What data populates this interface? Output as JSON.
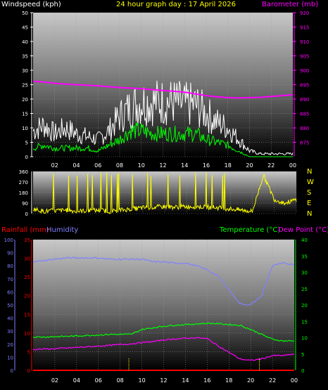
{
  "header": {
    "windspeed_label": "Windspeed (kph)",
    "title": "24 hour graph day : 17 April 2026",
    "barometer_label": "Barometer (mb)"
  },
  "direction_panel": {
    "compass": [
      "N",
      "W",
      "S",
      "E",
      "N"
    ]
  },
  "lower_header": {
    "rainfall_label": "Rainfall (mm)",
    "humidity_label": "Humidity",
    "temperature_label": "Temperature (°C)",
    "dewpoint_label": "Dew Point (°C)"
  },
  "colors": {
    "wind_gust": "#ffffff",
    "wind_avg": "#00ff00",
    "barometer": "#ff00ff",
    "direction": "#ffff00",
    "rainfall": "#ff0000",
    "humidity": "#8080ff",
    "temperature": "#00ff00",
    "dewpoint": "#ff00ff"
  },
  "chart_data": [
    {
      "type": "line",
      "name": "wind-and-pressure",
      "x_tick_labels": [
        "02",
        "04",
        "06",
        "08",
        "10",
        "12",
        "14",
        "16",
        "18",
        "20",
        "22",
        "00"
      ],
      "y_left": {
        "label": "Windspeed (kph)",
        "range": [
          0,
          50
        ],
        "ticks": [
          "0",
          "5",
          "10",
          "15",
          "20",
          "25",
          "30",
          "35",
          "40",
          "45",
          "50"
        ]
      },
      "y_right": {
        "label": "Barometer (mb)",
        "range": [
          870,
          920
        ],
        "ticks": [
          "875",
          "880",
          "885",
          "890",
          "895",
          "900",
          "905",
          "910",
          "915",
          "920"
        ]
      },
      "hours": [
        0,
        1,
        2,
        3,
        4,
        5,
        6,
        7,
        8,
        9,
        10,
        11,
        12,
        13,
        14,
        15,
        16,
        17,
        18,
        19,
        20,
        21,
        22,
        23,
        24
      ],
      "series": [
        {
          "key": "gust",
          "values": [
            9,
            11,
            8,
            10,
            8,
            7,
            6,
            9,
            14,
            17,
            19,
            19,
            19,
            19,
            18,
            18,
            15,
            12,
            10,
            6,
            2,
            1,
            1,
            1,
            1
          ]
        },
        {
          "key": "avg",
          "values": [
            3,
            4,
            3,
            3,
            3,
            3,
            2,
            4,
            6,
            9,
            9,
            8,
            8,
            8,
            8,
            8,
            6,
            5,
            4,
            2,
            0,
            0,
            0,
            0,
            0
          ]
        },
        {
          "key": "pressure",
          "values": [
            896.2,
            895.9,
            895.5,
            895.2,
            895,
            894.8,
            894.6,
            894.3,
            894,
            893.8,
            893.6,
            893.3,
            893,
            892.7,
            892.4,
            891.8,
            891.2,
            890.8,
            890.5,
            890.4,
            890.5,
            890.6,
            890.9,
            891.2,
            891.5
          ]
        }
      ]
    },
    {
      "type": "scatter",
      "name": "wind-direction",
      "y_range": [
        0,
        360
      ],
      "y_ticks": [
        "0",
        "90",
        "180",
        "270",
        "360"
      ],
      "hours": [
        0,
        1,
        2,
        3,
        4,
        5,
        6,
        7,
        8,
        9,
        10,
        11,
        12,
        13,
        14,
        15,
        16,
        17,
        18,
        19,
        20,
        21,
        22,
        23,
        24
      ],
      "values": [
        40,
        20,
        25,
        30,
        20,
        25,
        30,
        20,
        30,
        40,
        50,
        55,
        60,
        55,
        60,
        60,
        55,
        50,
        40,
        30,
        20,
        330,
        120,
        90,
        120
      ]
    },
    {
      "type": "line",
      "name": "rain-humidity-temperature",
      "x_tick_labels": [
        "02",
        "04",
        "06",
        "08",
        "10",
        "12",
        "14",
        "16",
        "18",
        "20",
        "22",
        "00"
      ],
      "y_left": {
        "label": "Rainfall (mm)",
        "range": [
          0,
          35
        ],
        "ticks": [
          "0",
          "5",
          "10",
          "15",
          "20",
          "25",
          "30",
          "35"
        ]
      },
      "y_humidity": {
        "label": "Humidity",
        "range": [
          0,
          100
        ],
        "ticks": [
          "0",
          "10",
          "20",
          "30",
          "40",
          "50",
          "60",
          "70",
          "80",
          "90",
          "100"
        ]
      },
      "y_right": {
        "label": "Temperature (°C)",
        "range": [
          0,
          40
        ],
        "ticks": [
          "0",
          "5",
          "10",
          "15",
          "20",
          "25",
          "30",
          "35",
          "40"
        ]
      },
      "hours": [
        0,
        1,
        2,
        3,
        4,
        5,
        6,
        7,
        8,
        9,
        10,
        11,
        12,
        13,
        14,
        15,
        16,
        17,
        18,
        19,
        20,
        21,
        22,
        23,
        24
      ],
      "series": [
        {
          "key": "humidity",
          "values": [
            83,
            84,
            85,
            86,
            86,
            86,
            86,
            85,
            85,
            85,
            85,
            83,
            83,
            82,
            82,
            80,
            77,
            72,
            62,
            51,
            50,
            57,
            80,
            82,
            81
          ]
        },
        {
          "key": "temperature",
          "values": [
            10.2,
            10.2,
            10.3,
            10.4,
            10.5,
            10.7,
            10.8,
            11,
            11,
            11,
            12.5,
            13,
            13.5,
            13.8,
            14,
            14.2,
            14.4,
            14.3,
            14,
            13.8,
            12.5,
            11,
            9.5,
            9,
            9
          ]
        },
        {
          "key": "dewpoint",
          "values": [
            6.4,
            6.5,
            6.6,
            6.8,
            7,
            7.2,
            7.4,
            7.6,
            7.9,
            8.1,
            8.5,
            8.8,
            9.3,
            9.6,
            9.8,
            10,
            9.7,
            7.5,
            5.5,
            3.5,
            3,
            3.5,
            4.5,
            4.5,
            5
          ]
        },
        {
          "key": "rainfall",
          "values": [
            0,
            0,
            0,
            0,
            0,
            0,
            0,
            0,
            0,
            0,
            0,
            0,
            0,
            0,
            0,
            0,
            0,
            0,
            0,
            0,
            0,
            0,
            0,
            0,
            0
          ]
        }
      ]
    }
  ]
}
